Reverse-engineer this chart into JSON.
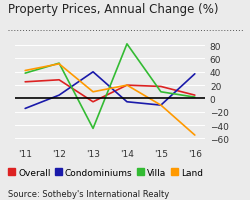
{
  "title": "Property Prices, Annual Change (%)",
  "source": "Source: Sotheby's International Realty",
  "x_labels": [
    "'11",
    "'12",
    "'13",
    "'14",
    "'15",
    "'16"
  ],
  "x_values": [
    0,
    1,
    2,
    3,
    4,
    5
  ],
  "series": {
    "Overall": {
      "color": "#dd2222",
      "values": [
        25,
        28,
        -5,
        20,
        18,
        5
      ]
    },
    "Condominiums": {
      "color": "#1a1aaa",
      "values": [
        -15,
        5,
        40,
        -5,
        -10,
        37
      ]
    },
    "Villa": {
      "color": "#33bb33",
      "values": [
        38,
        53,
        -45,
        82,
        10,
        2
      ]
    },
    "Land": {
      "color": "#ff9900",
      "values": [
        42,
        52,
        10,
        20,
        -10,
        -55
      ]
    }
  },
  "ylim": [
    -68,
    95
  ],
  "yticks": [
    -60,
    -40,
    -20,
    0,
    20,
    40,
    60,
    80
  ],
  "background_color": "#ebebeb",
  "title_fontsize": 8.5,
  "tick_fontsize": 6.5,
  "legend_fontsize": 6.5,
  "source_fontsize": 6.0
}
